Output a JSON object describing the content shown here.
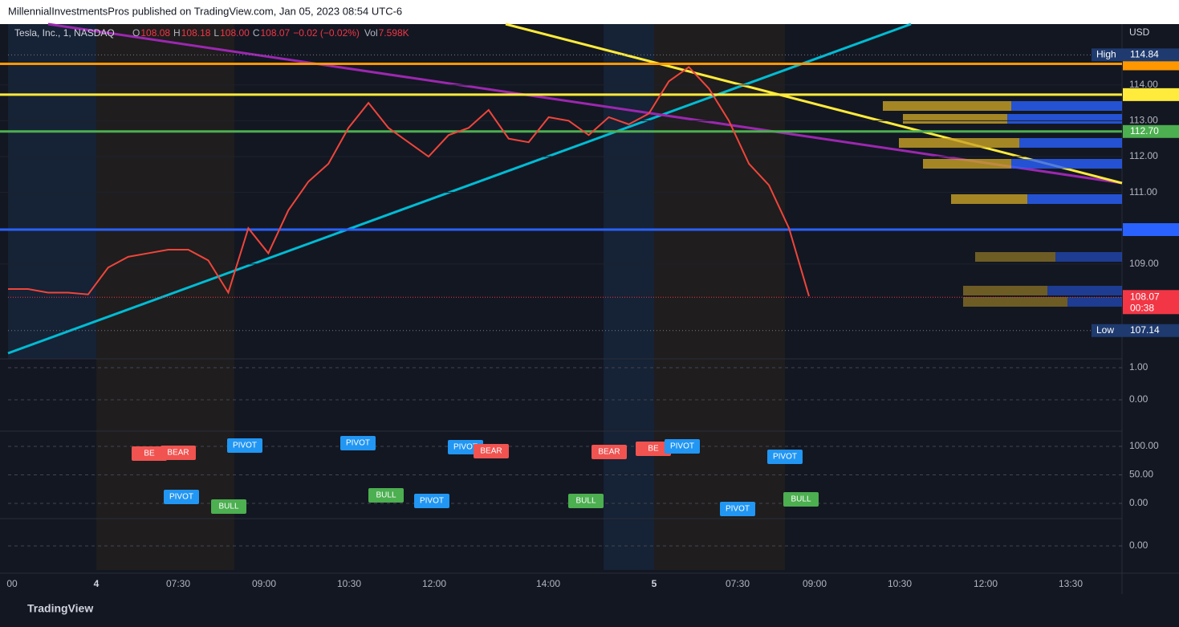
{
  "header": {
    "publisher": "MillennialInvestmentsPros published on TradingView.com, Jan 05, 2023 08:54 UTC-6",
    "footer": "TradingView"
  },
  "legend": {
    "symbol": "Tesla, Inc., 1, NASDAQ",
    "ohlc": [
      {
        "label": "O",
        "value": "108.08"
      },
      {
        "label": "H",
        "value": "108.18"
      },
      {
        "label": "L",
        "value": "108.00"
      },
      {
        "label": "C",
        "value": "108.07"
      }
    ],
    "change": "−0.02 (−0.02%)",
    "volume_label": "Vol",
    "volume": "7.598K"
  },
  "chart_data": {
    "type": "line",
    "currency": "USD",
    "color": "#f0453a",
    "values": [
      108.3,
      108.3,
      108.2,
      108.2,
      108.15,
      108.9,
      109.2,
      109.3,
      109.4,
      109.4,
      109.1,
      108.2,
      110.0,
      109.3,
      110.5,
      111.3,
      111.8,
      112.8,
      113.5,
      112.8,
      112.4,
      112.0,
      112.6,
      112.8,
      113.3,
      112.5,
      112.4,
      113.1,
      113.0,
      112.6,
      113.1,
      112.9,
      113.2,
      114.1,
      114.5,
      113.9,
      113.0,
      111.8,
      111.2,
      110.0,
      108.1
    ],
    "ylim": [
      106.35,
      115.7
    ],
    "yticks": [
      {
        "value": 114,
        "label": "114.00"
      },
      {
        "value": 113,
        "label": "113.00"
      },
      {
        "value": 112,
        "label": "112.00"
      },
      {
        "value": 111,
        "label": "111.00"
      },
      {
        "value": 109,
        "label": "109.00"
      }
    ],
    "xticks": [
      "00",
      "4",
      "07:30",
      "09:00",
      "10:30",
      "12:00",
      "14:00",
      "5",
      "07:30",
      "09:00",
      "10:30",
      "12:00",
      "13:30"
    ],
    "levels": [
      {
        "value": 114.59,
        "color": "#ff9800"
      },
      {
        "value": 113.73,
        "color": "#ffeb3b"
      },
      {
        "value": 112.7,
        "label": "112.70",
        "color": "#4caf50"
      },
      {
        "value": 109.96,
        "color": "#2962ff"
      }
    ],
    "markers": [
      {
        "name": "High",
        "value": 114.84
      },
      {
        "name": "Low",
        "value": 107.14
      }
    ],
    "last": {
      "value": 108.07,
      "countdown": "00:38"
    }
  },
  "panes": [
    {
      "ylim": [
        -0.925,
        1.2
      ],
      "yticks": [
        {
          "value": 1,
          "label": "1.00"
        },
        {
          "value": 0,
          "label": "0.00"
        }
      ]
    },
    {
      "ylim": [
        -25.4,
        125.4
      ],
      "yticks": [
        {
          "value": 100,
          "label": "100.00"
        },
        {
          "value": 50,
          "label": "50.00"
        },
        {
          "value": 0,
          "label": "0.00"
        }
      ]
    },
    {
      "ylim": [
        -1,
        1
      ],
      "yticks": [
        {
          "value": 0,
          "label": "0.00"
        }
      ]
    }
  ],
  "signals": [
    "BE",
    "BEAR",
    "PIVOT",
    "PIVOT",
    "PIVOT",
    "BEAR",
    "BEAR",
    "BE",
    "PIVOT",
    "PIVOT",
    "PIVOT",
    "BULL",
    "BULL",
    "PIVOT",
    "BULL",
    "PIVOT",
    "BULL"
  ]
}
